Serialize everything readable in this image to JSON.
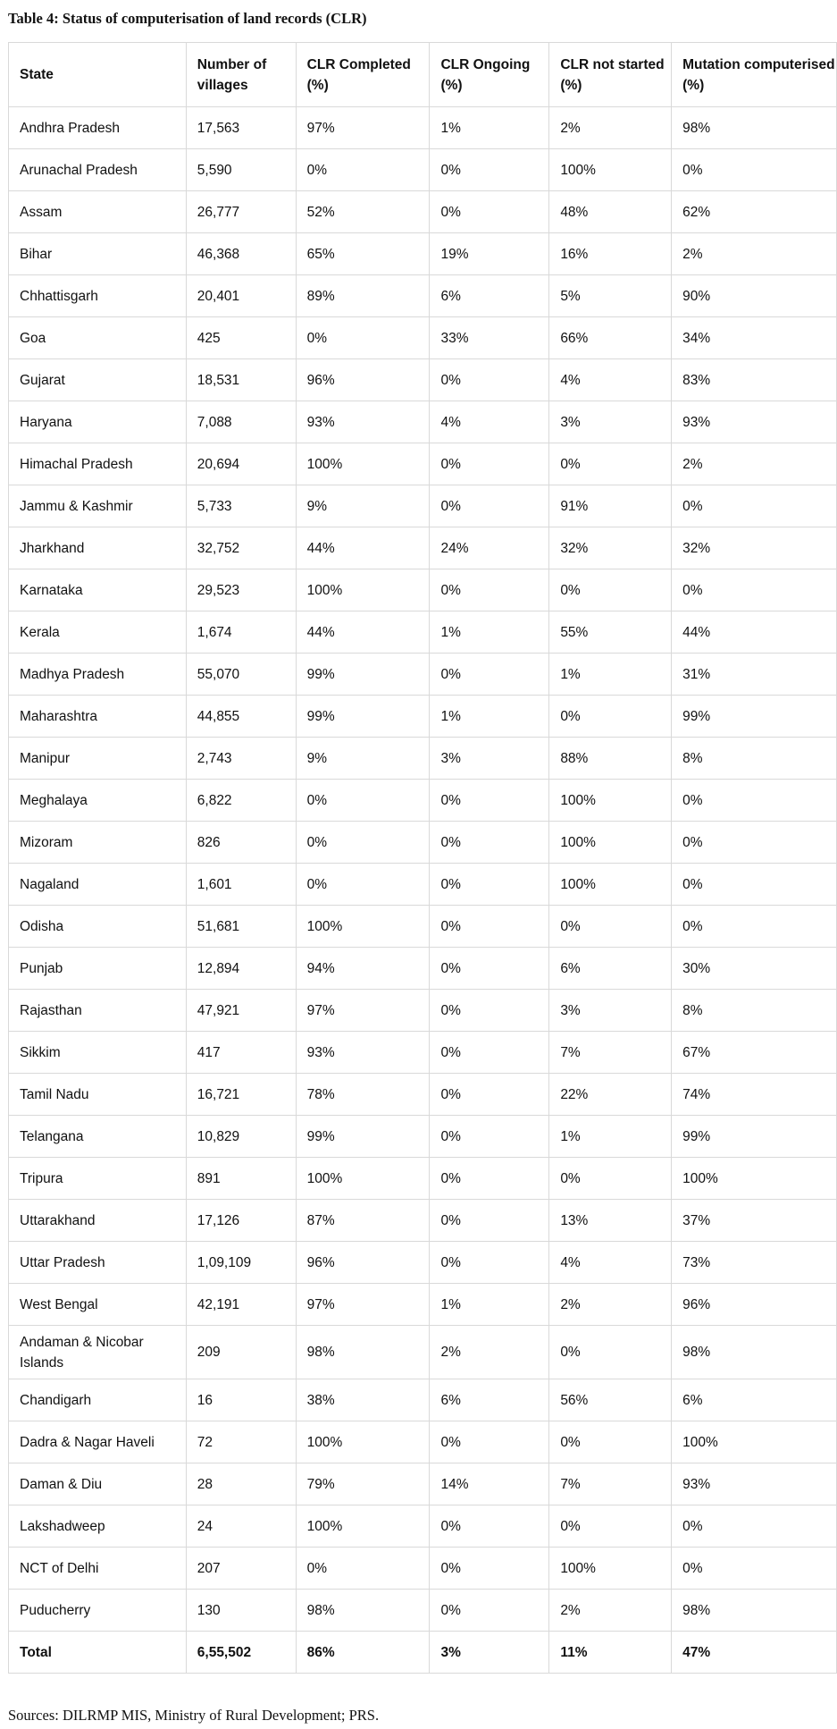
{
  "title": "Table 4: Status of computerisation of land records (CLR)",
  "table": {
    "headers": [
      "State",
      "Number of villages",
      "CLR Completed (%)",
      "CLR Ongoing (%)",
      "CLR not started (%)",
      "Mutation computerised (%)"
    ],
    "rows": [
      [
        "Andhra Pradesh",
        "17,563",
        "97%",
        "1%",
        "2%",
        "98%"
      ],
      [
        "Arunachal Pradesh",
        "5,590",
        "0%",
        "0%",
        "100%",
        "0%"
      ],
      [
        "Assam",
        "26,777",
        "52%",
        "0%",
        "48%",
        "62%"
      ],
      [
        "Bihar",
        "46,368",
        "65%",
        "19%",
        "16%",
        "2%"
      ],
      [
        "Chhattisgarh",
        "20,401",
        "89%",
        "6%",
        "5%",
        "90%"
      ],
      [
        "Goa",
        "425",
        "0%",
        "33%",
        "66%",
        "34%"
      ],
      [
        "Gujarat",
        "18,531",
        "96%",
        "0%",
        "4%",
        "83%"
      ],
      [
        "Haryana",
        "7,088",
        "93%",
        "4%",
        "3%",
        "93%"
      ],
      [
        "Himachal Pradesh",
        "20,694",
        "100%",
        "0%",
        "0%",
        "2%"
      ],
      [
        "Jammu & Kashmir",
        "5,733",
        "9%",
        "0%",
        "91%",
        "0%"
      ],
      [
        "Jharkhand",
        "32,752",
        "44%",
        "24%",
        "32%",
        "32%"
      ],
      [
        "Karnataka",
        "29,523",
        "100%",
        "0%",
        "0%",
        "0%"
      ],
      [
        "Kerala",
        "1,674",
        "44%",
        "1%",
        "55%",
        "44%"
      ],
      [
        "Madhya Pradesh",
        "55,070",
        "99%",
        "0%",
        "1%",
        "31%"
      ],
      [
        "Maharashtra",
        "44,855",
        "99%",
        "1%",
        "0%",
        "99%"
      ],
      [
        "Manipur",
        "2,743",
        "9%",
        "3%",
        "88%",
        "8%"
      ],
      [
        "Meghalaya",
        "6,822",
        "0%",
        "0%",
        "100%",
        "0%"
      ],
      [
        "Mizoram",
        "826",
        "0%",
        "0%",
        "100%",
        "0%"
      ],
      [
        "Nagaland",
        "1,601",
        "0%",
        "0%",
        "100%",
        "0%"
      ],
      [
        "Odisha",
        "51,681",
        "100%",
        "0%",
        "0%",
        "0%"
      ],
      [
        "Punjab",
        "12,894",
        "94%",
        "0%",
        "6%",
        "30%"
      ],
      [
        "Rajasthan",
        "47,921",
        "97%",
        "0%",
        "3%",
        "8%"
      ],
      [
        "Sikkim",
        "417",
        "93%",
        "0%",
        "7%",
        "67%"
      ],
      [
        "Tamil Nadu",
        "16,721",
        "78%",
        "0%",
        "22%",
        "74%"
      ],
      [
        "Telangana",
        "10,829",
        "99%",
        "0%",
        "1%",
        "99%"
      ],
      [
        "Tripura",
        "891",
        "100%",
        "0%",
        "0%",
        "100%"
      ],
      [
        "Uttarakhand",
        "17,126",
        "87%",
        "0%",
        "13%",
        "37%"
      ],
      [
        "Uttar Pradesh",
        "1,09,109",
        "96%",
        "0%",
        "4%",
        "73%"
      ],
      [
        "West Bengal",
        "42,191",
        "97%",
        "1%",
        "2%",
        "96%"
      ],
      [
        "Andaman & Nicobar Islands",
        "209",
        "98%",
        "2%",
        "0%",
        "98%"
      ],
      [
        "Chandigarh",
        "16",
        "38%",
        "6%",
        "56%",
        "6%"
      ],
      [
        "Dadra & Nagar Haveli",
        "72",
        "100%",
        "0%",
        "0%",
        "100%"
      ],
      [
        "Daman & Diu",
        "28",
        "79%",
        "14%",
        "7%",
        "93%"
      ],
      [
        "Lakshadweep",
        "24",
        "100%",
        "0%",
        "0%",
        "0%"
      ],
      [
        "NCT of Delhi",
        "207",
        "0%",
        "0%",
        "100%",
        "0%"
      ],
      [
        "Puducherry",
        "130",
        "98%",
        "0%",
        "2%",
        "98%"
      ]
    ],
    "total": [
      "Total",
      "6,55,502",
      "86%",
      "3%",
      "11%",
      "47%"
    ]
  },
  "sources": "Sources: DILRMP MIS, Ministry of Rural Development; PRS."
}
